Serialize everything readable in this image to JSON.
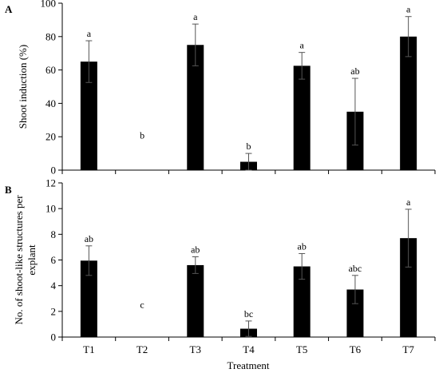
{
  "chart_data": [
    {
      "panel_label": "A",
      "type": "bar",
      "categories": [
        "T1",
        "T2",
        "T3",
        "T4",
        "T5",
        "T6",
        "T7"
      ],
      "values": [
        65,
        0,
        75,
        5,
        62.5,
        35,
        80
      ],
      "errors": [
        12.5,
        0,
        12.5,
        5,
        8,
        20,
        12
      ],
      "letters": [
        "a",
        "b",
        "a",
        "b",
        "a",
        "ab",
        "a"
      ],
      "ylabel": "Shoot induction (%)",
      "ylim": [
        0,
        100
      ],
      "yticks": [
        0,
        20,
        40,
        60,
        80,
        100
      ],
      "bar_color": "#000000"
    },
    {
      "panel_label": "B",
      "type": "bar",
      "categories": [
        "T1",
        "T2",
        "T3",
        "T4",
        "T5",
        "T6",
        "T7"
      ],
      "values": [
        5.95,
        0,
        5.6,
        0.65,
        5.5,
        3.7,
        7.7
      ],
      "errors": [
        1.15,
        0,
        0.65,
        0.6,
        1.0,
        1.1,
        2.25
      ],
      "letters": [
        "ab",
        "c",
        "ab",
        "bc",
        "ab",
        "abc",
        "a"
      ],
      "ylabel_lines": [
        "No. of shoot-like structures per",
        "explant"
      ],
      "ylim": [
        0,
        12
      ],
      "yticks": [
        0,
        2,
        4,
        6,
        8,
        10,
        12
      ],
      "bar_color": "#000000"
    }
  ],
  "xlabel": "Treatment"
}
